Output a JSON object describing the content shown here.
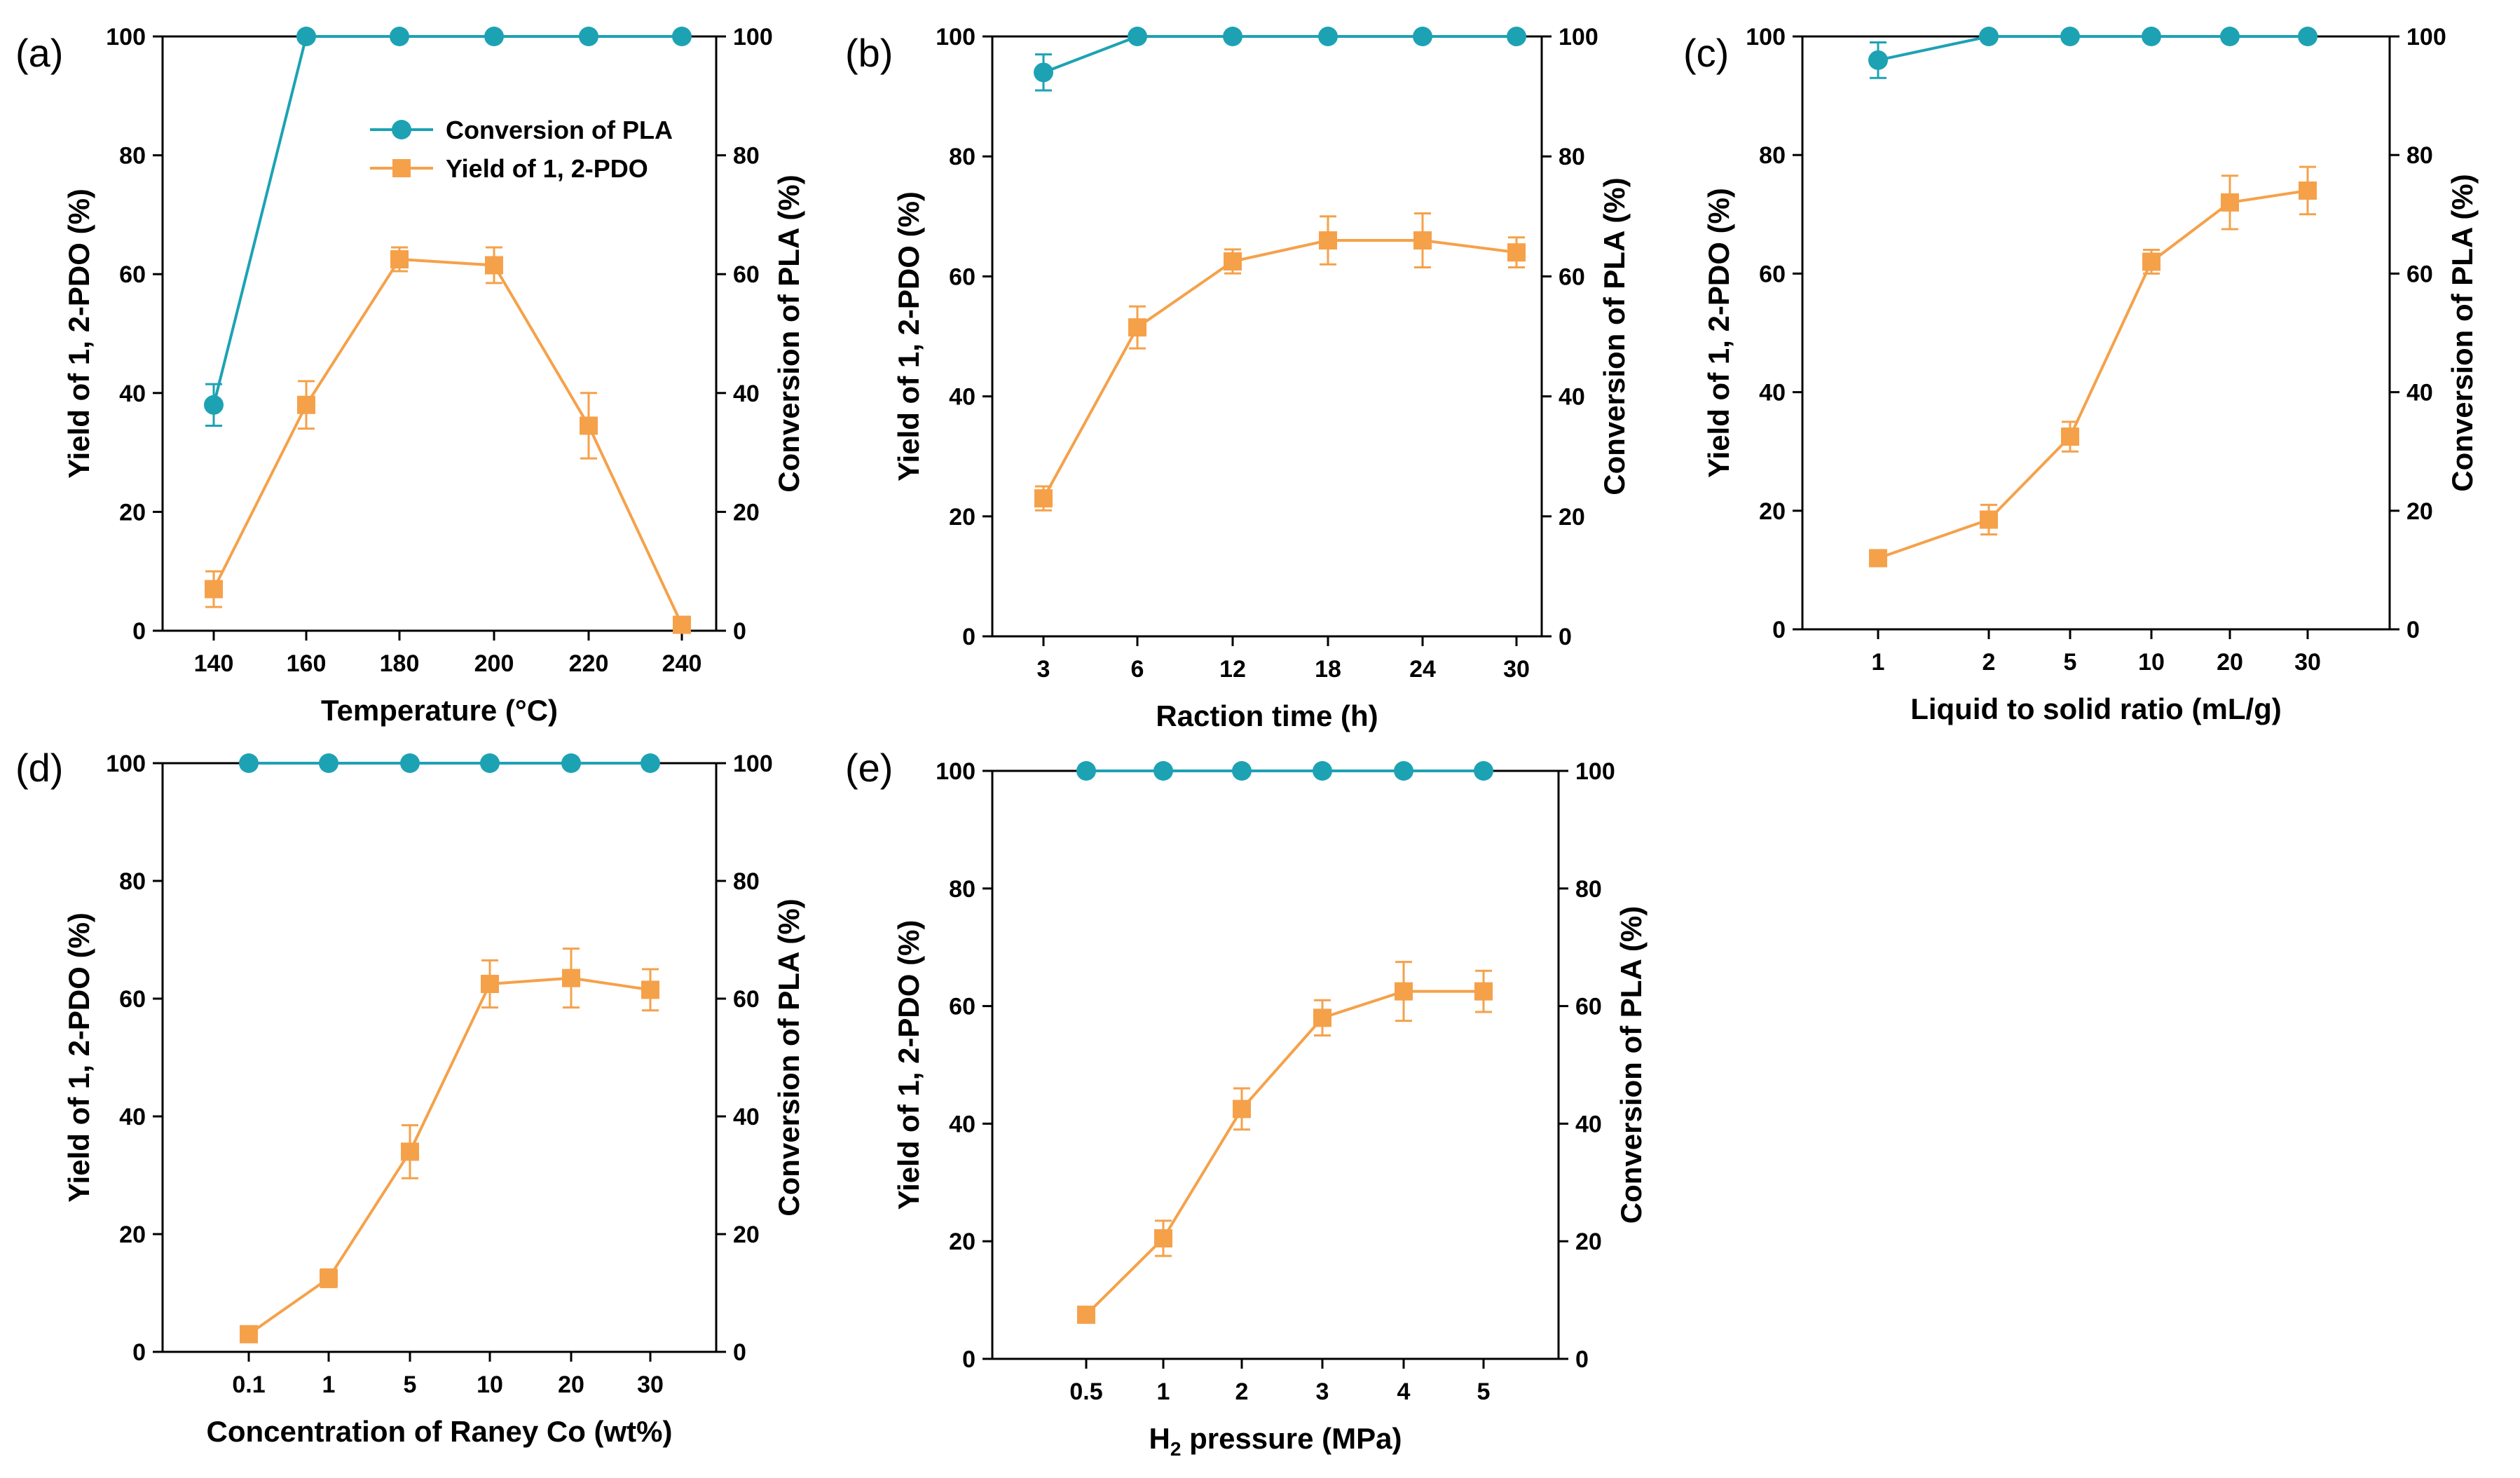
{
  "figure": {
    "colors": {
      "conversion": "#1da2b4",
      "yield": "#f5a14a",
      "axis": "#000000"
    },
    "legend": {
      "conversion_label": "Conversion of PLA",
      "yield_label": "Yield of 1, 2-PDO",
      "placement": "top-right of panel (a)"
    }
  },
  "chart_data": [
    {
      "panel": "(a)",
      "type": "line",
      "xlabel": "Temperature (°C)",
      "ylabel_left": "Yield of 1, 2-PDO (%)",
      "ylabel_right": "Conversion of PLA (%)",
      "categories": [
        "140",
        "160",
        "180",
        "200",
        "220",
        "240"
      ],
      "ylim_left": [
        0,
        100
      ],
      "ylim_right": [
        0,
        100
      ],
      "yticks_left": [
        "0",
        "20",
        "40",
        "60",
        "80",
        "100"
      ],
      "yticks_right": [
        "0",
        "20",
        "40",
        "60",
        "80",
        "100"
      ],
      "series": [
        {
          "name": "Conversion of PLA",
          "axis": "right",
          "marker": "circle",
          "values": [
            38,
            100,
            100,
            100,
            100,
            100
          ],
          "errors": [
            3.5,
            0,
            0,
            0,
            0,
            0
          ]
        },
        {
          "name": "Yield of 1, 2-PDO",
          "axis": "left",
          "marker": "square",
          "values": [
            7,
            38,
            62.5,
            61.5,
            34.5,
            1
          ],
          "errors": [
            3,
            4,
            2,
            3,
            5.5,
            0
          ]
        }
      ]
    },
    {
      "panel": "(b)",
      "type": "line",
      "xlabel": "Raction time (h)",
      "ylabel_left": "Yield of 1, 2-PDO (%)",
      "ylabel_right": "Conversion of PLA (%)",
      "categories": [
        "3",
        "6",
        "12",
        "18",
        "24",
        "30"
      ],
      "ylim_left": [
        0,
        100
      ],
      "ylim_right": [
        0,
        100
      ],
      "yticks_left": [
        "0",
        "20",
        "40",
        "60",
        "80",
        "100"
      ],
      "yticks_right": [
        "0",
        "20",
        "40",
        "60",
        "80",
        "100"
      ],
      "series": [
        {
          "name": "Conversion of PLA",
          "axis": "right",
          "marker": "circle",
          "values": [
            94,
            100,
            100,
            100,
            100,
            100
          ],
          "errors": [
            3,
            0,
            0,
            0,
            0,
            0
          ]
        },
        {
          "name": "Yield of 1, 2-PDO",
          "axis": "left",
          "marker": "square",
          "values": [
            23,
            51.5,
            62.5,
            66,
            66,
            64
          ],
          "errors": [
            2,
            3.5,
            2,
            4,
            4.5,
            2.5
          ]
        }
      ]
    },
    {
      "panel": "(c)",
      "type": "line",
      "xlabel": "Liquid to solid ratio (mL/g)",
      "ylabel_left": "Yield of 1, 2-PDO (%)",
      "ylabel_right": "Conversion of PLA (%)",
      "categories": [
        "1",
        "2",
        "5",
        "10",
        "20",
        "30"
      ],
      "ylim_left": [
        0,
        100
      ],
      "ylim_right": [
        0,
        100
      ],
      "yticks_left": [
        "0",
        "20",
        "40",
        "60",
        "80",
        "100"
      ],
      "yticks_right": [
        "0",
        "20",
        "40",
        "60",
        "80",
        "100"
      ],
      "series": [
        {
          "name": "Conversion of PLA",
          "axis": "right",
          "marker": "circle",
          "values": [
            96,
            100,
            100,
            100,
            100,
            100
          ],
          "errors": [
            3,
            0,
            0,
            0,
            0,
            0
          ]
        },
        {
          "name": "Yield of 1, 2-PDO",
          "axis": "left",
          "marker": "square",
          "values": [
            12,
            18.5,
            32.5,
            62,
            72,
            74
          ],
          "errors": [
            1,
            2.5,
            2.5,
            2,
            4.5,
            4
          ]
        }
      ]
    },
    {
      "panel": "(d)",
      "type": "line",
      "xlabel": "Concentration of Raney Co (wt%)",
      "ylabel_left": "Yield of 1, 2-PDO (%)",
      "ylabel_right": "Conversion of PLA (%)",
      "categories": [
        "0.1",
        "1",
        "5",
        "10",
        "20",
        "30"
      ],
      "ylim_left": [
        0,
        100
      ],
      "ylim_right": [
        0,
        100
      ],
      "yticks_left": [
        "0",
        "20",
        "40",
        "60",
        "80",
        "100"
      ],
      "yticks_right": [
        "0",
        "20",
        "40",
        "60",
        "80",
        "100"
      ],
      "series": [
        {
          "name": "Conversion of PLA",
          "axis": "right",
          "marker": "circle",
          "values": [
            100,
            100,
            100,
            100,
            100,
            100
          ],
          "errors": [
            0,
            0,
            0,
            0,
            0,
            0
          ]
        },
        {
          "name": "Yield of 1, 2-PDO",
          "axis": "left",
          "marker": "square",
          "values": [
            3,
            12.5,
            34,
            62.5,
            63.5,
            61.5
          ],
          "errors": [
            0,
            1.5,
            4.5,
            4,
            5,
            3.5
          ]
        }
      ]
    },
    {
      "panel": "(e)",
      "type": "line",
      "xlabel_main": "H",
      "xlabel_sub": "2",
      "xlabel_rest": " pressure (MPa)",
      "ylabel_left": "Yield of 1, 2-PDO (%)",
      "ylabel_right": "Conversion of PLA (%)",
      "categories": [
        "0.5",
        "1",
        "2",
        "3",
        "4",
        "5"
      ],
      "ylim_left": [
        0,
        100
      ],
      "ylim_right": [
        0,
        100
      ],
      "yticks_left": [
        "0",
        "20",
        "40",
        "60",
        "80",
        "100"
      ],
      "yticks_right": [
        "0",
        "20",
        "40",
        "60",
        "80",
        "100"
      ],
      "series": [
        {
          "name": "Conversion of PLA",
          "axis": "right",
          "marker": "circle",
          "values": [
            100,
            100,
            100,
            100,
            100,
            100
          ],
          "errors": [
            0,
            0,
            0,
            0,
            0,
            0
          ]
        },
        {
          "name": "Yield of 1, 2-PDO",
          "axis": "left",
          "marker": "square",
          "values": [
            7.5,
            20.5,
            42.5,
            58,
            62.5,
            62.5
          ],
          "errors": [
            0,
            3,
            3.5,
            3,
            5,
            3.5
          ]
        }
      ]
    }
  ]
}
